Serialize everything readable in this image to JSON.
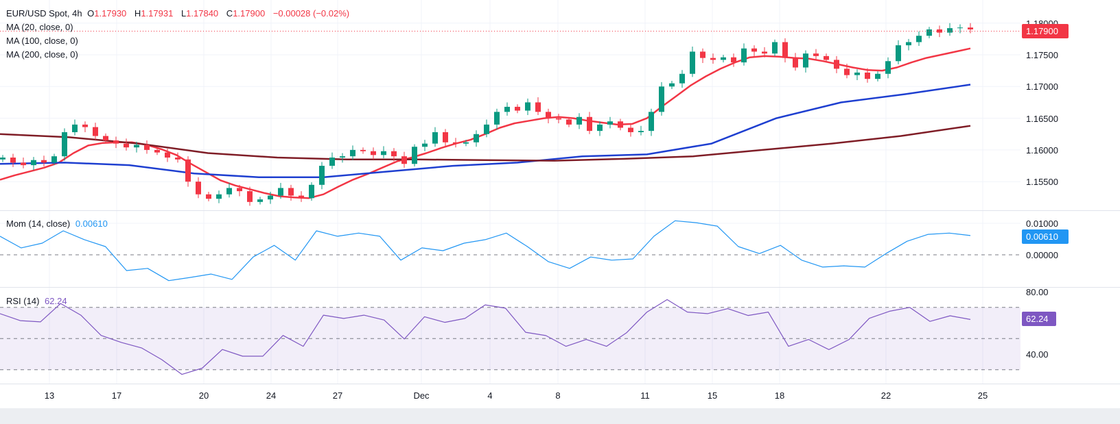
{
  "header": {
    "symbol": "EUR/USD Spot, 4h",
    "o_label": "O",
    "o": "1.17930",
    "h_label": "H",
    "h": "1.17931",
    "l_label": "L",
    "l": "1.17840",
    "c_label": "C",
    "c": "1.17900",
    "change": "−0.00028 (−0.02%)",
    "ma20": "MA (20, close, 0)",
    "ma100": "MA (100, close, 0)",
    "ma200": "MA (200, close, 0)"
  },
  "momentum": {
    "title": "Mom (14, close)",
    "value": "0.00610"
  },
  "rsi": {
    "title": "RSI (14)",
    "value": "62.24"
  },
  "colors": {
    "up": "#089981",
    "down": "#f23645",
    "ma20": "#f23645",
    "ma100": "#1e3fd0",
    "ma200": "#7f1d26",
    "momentum": "#2196f3",
    "rsi": "#7e57c2"
  },
  "chart_data": [
    {
      "type": "candlestick",
      "title": "EUR/USD Spot, 4h",
      "ylim": [
        1.1505,
        1.1805
      ],
      "y_ticks": [
        "1.18000",
        "1.17500",
        "1.17000",
        "1.16500",
        "1.16000",
        "1.15500"
      ],
      "x_ticks": [
        "13",
        "17",
        "20",
        "24",
        "27",
        "Dec",
        "4",
        "8",
        "11",
        "15",
        "18",
        "22",
        "25"
      ],
      "last_price": "1.17900",
      "closes": [
        1.1588,
        1.158,
        1.1576,
        1.1584,
        1.158,
        1.159,
        1.1628,
        1.164,
        1.1636,
        1.1622,
        1.1615,
        1.161,
        1.1604,
        1.1608,
        1.16,
        1.1596,
        1.1588,
        1.1585,
        1.155,
        1.153,
        1.1523,
        1.153,
        1.154,
        1.1535,
        1.1518,
        1.1522,
        1.1528,
        1.154,
        1.1528,
        1.1524,
        1.1545,
        1.1575,
        1.1588,
        1.159,
        1.16,
        1.1598,
        1.1592,
        1.1598,
        1.159,
        1.1578,
        1.1605,
        1.161,
        1.1628,
        1.1612,
        1.161,
        1.1612,
        1.1625,
        1.164,
        1.166,
        1.1668,
        1.1662,
        1.1675,
        1.166,
        1.165,
        1.1648,
        1.164,
        1.1652,
        1.163,
        1.164,
        1.1645,
        1.1635,
        1.1628,
        1.163,
        1.166,
        1.17,
        1.1705,
        1.172,
        1.1755,
        1.1745,
        1.1742,
        1.1746,
        1.1738,
        1.176,
        1.1755,
        1.1752,
        1.177,
        1.1745,
        1.173,
        1.1752,
        1.1748,
        1.1742,
        1.1728,
        1.1718,
        1.1722,
        1.1712,
        1.172,
        1.174,
        1.1765,
        1.177,
        1.178,
        1.179,
        1.1785,
        1.1792,
        1.1793,
        1.179
      ],
      "series": [
        {
          "name": "MA (20, close, 0)",
          "values": [
            1.1553,
            1.156,
            1.1566,
            1.1572,
            1.158,
            1.1595,
            1.1607,
            1.1611,
            1.1612,
            1.1612,
            1.1608,
            1.1601,
            1.1592,
            1.1578,
            1.1565,
            1.1552,
            1.1544,
            1.1538,
            1.1532,
            1.1527,
            1.1525,
            1.1524,
            1.153,
            1.1542,
            1.1553,
            1.1562,
            1.1572,
            1.1582,
            1.1588,
            1.1595,
            1.1603,
            1.161,
            1.1616,
            1.1625,
            1.1635,
            1.1642,
            1.1646,
            1.165,
            1.1652,
            1.165,
            1.1646,
            1.1643,
            1.164,
            1.1641,
            1.165,
            1.1668,
            1.1685,
            1.1702,
            1.1716,
            1.1728,
            1.1738,
            1.1746,
            1.1748,
            1.1747,
            1.1745,
            1.1744,
            1.174,
            1.1735,
            1.173,
            1.1726,
            1.1725,
            1.173,
            1.1738,
            1.1745,
            1.175,
            1.1755,
            1.176
          ]
        },
        {
          "name": "MA (100, close, 0)",
          "values": [
            1.1578,
            1.158,
            1.1576,
            1.1563,
            1.1557,
            1.1557,
            1.1566,
            1.1575,
            1.158,
            1.159,
            1.1593,
            1.161,
            1.165,
            1.1675,
            1.1688,
            1.1703
          ]
        },
        {
          "name": "MA (200, close, 0)",
          "values": [
            1.1625,
            1.162,
            1.161,
            1.1595,
            1.1588,
            1.1585,
            1.1585,
            1.1584,
            1.1583,
            1.1586,
            1.159,
            1.16,
            1.161,
            1.1622,
            1.1638
          ]
        }
      ]
    },
    {
      "type": "line",
      "title": "Mom (14, close)",
      "y_ticks": [
        "0.01000",
        "0.00000"
      ],
      "ylim": [
        -0.0095,
        0.0115
      ],
      "values": [
        0.0059,
        0.0022,
        0.0037,
        0.0076,
        0.0048,
        0.0026,
        -0.005,
        -0.0043,
        -0.0082,
        -0.0072,
        -0.0061,
        -0.0078,
        -0.0007,
        0.003,
        -0.0017,
        0.0076,
        0.0059,
        0.0069,
        0.0059,
        -0.0017,
        0.0022,
        0.0013,
        0.0037,
        0.0048,
        0.0069,
        0.0026,
        -0.0022,
        -0.0043,
        -0.0007,
        -0.0017,
        -0.0013,
        0.0059,
        0.0108,
        0.0102,
        0.0091,
        0.0026,
        0.0004,
        0.003,
        -0.0017,
        -0.0039,
        -0.0035,
        -0.0039,
        0.0004,
        0.0043,
        0.0065,
        0.0069,
        0.0061
      ]
    },
    {
      "type": "line",
      "title": "RSI (14)",
      "y_ticks": [
        "80.00",
        "40.00"
      ],
      "bands": [
        70,
        50,
        30
      ],
      "ylim": [
        23,
        87
      ],
      "values": [
        66,
        61.5,
        60.7,
        72.5,
        65,
        52,
        47.5,
        44,
        36.5,
        27,
        31,
        43,
        38.7,
        38.7,
        52,
        45,
        65,
        62.9,
        65,
        61.9,
        49.7,
        64,
        60.4,
        62.9,
        71.6,
        69.5,
        54,
        51.9,
        45,
        49.4,
        45,
        53.8,
        67,
        75,
        67,
        66,
        69.2,
        64.8,
        67,
        45,
        49.4,
        42.9,
        49.4,
        63,
        67.5,
        70,
        61,
        64.6,
        62.24
      ]
    }
  ]
}
